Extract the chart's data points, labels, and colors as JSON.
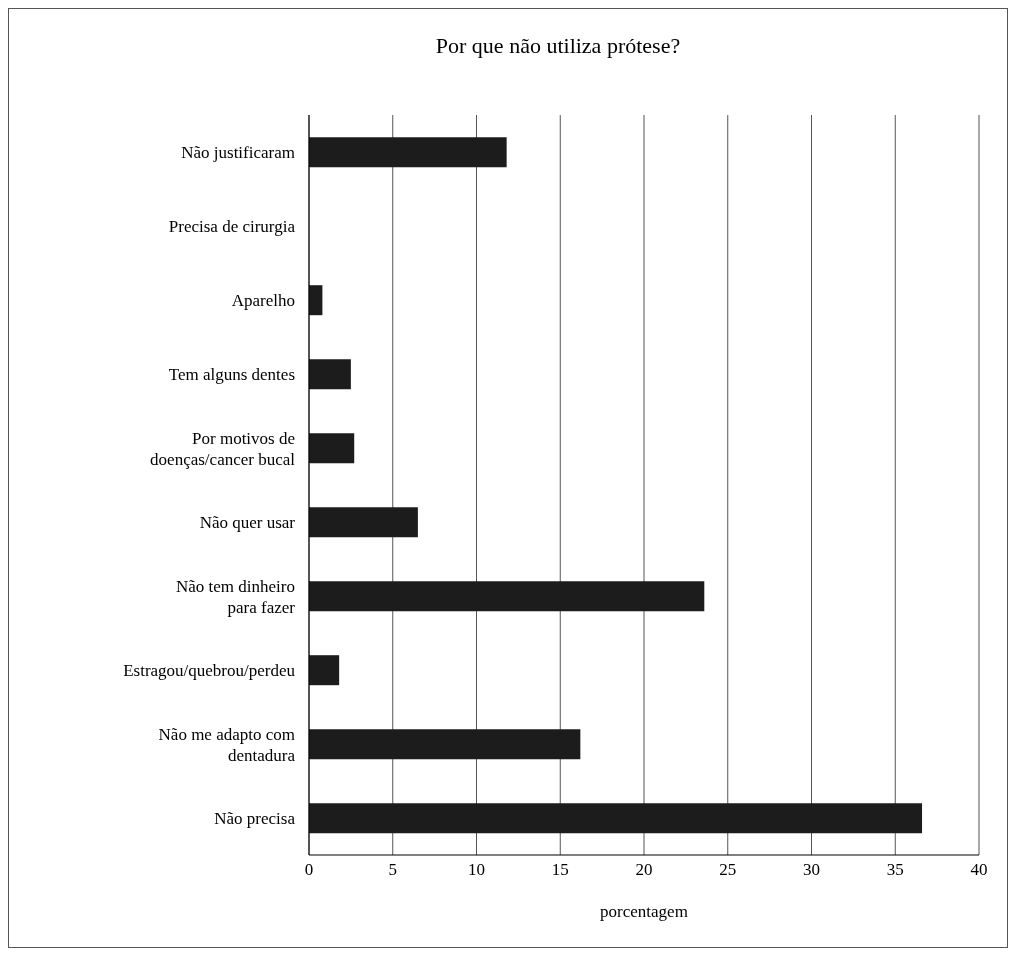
{
  "chart_data": {
    "type": "bar",
    "orientation": "horizontal",
    "title": "Por que não utiliza prótese?",
    "xlabel": "porcentagem",
    "categories": [
      "Não justificaram",
      "Precisa de cirurgia",
      "Aparelho",
      "Tem alguns dentes",
      "Por motivos de doenças/cancer bucal",
      "Não quer usar",
      "Não tem dinheiro para fazer",
      "Estragou/quebrou/perdeu",
      "Não me adapto com dentadura",
      "Não precisa"
    ],
    "values": [
      11.8,
      0,
      0.8,
      2.5,
      2.7,
      6.5,
      23.6,
      1.8,
      16.2,
      36.6
    ],
    "color": "#1c1c1c",
    "xlim": [
      0,
      40
    ],
    "xticks": [
      0,
      5,
      10,
      15,
      20,
      25,
      30,
      35,
      40
    ],
    "grid": "x",
    "legend": false
  }
}
